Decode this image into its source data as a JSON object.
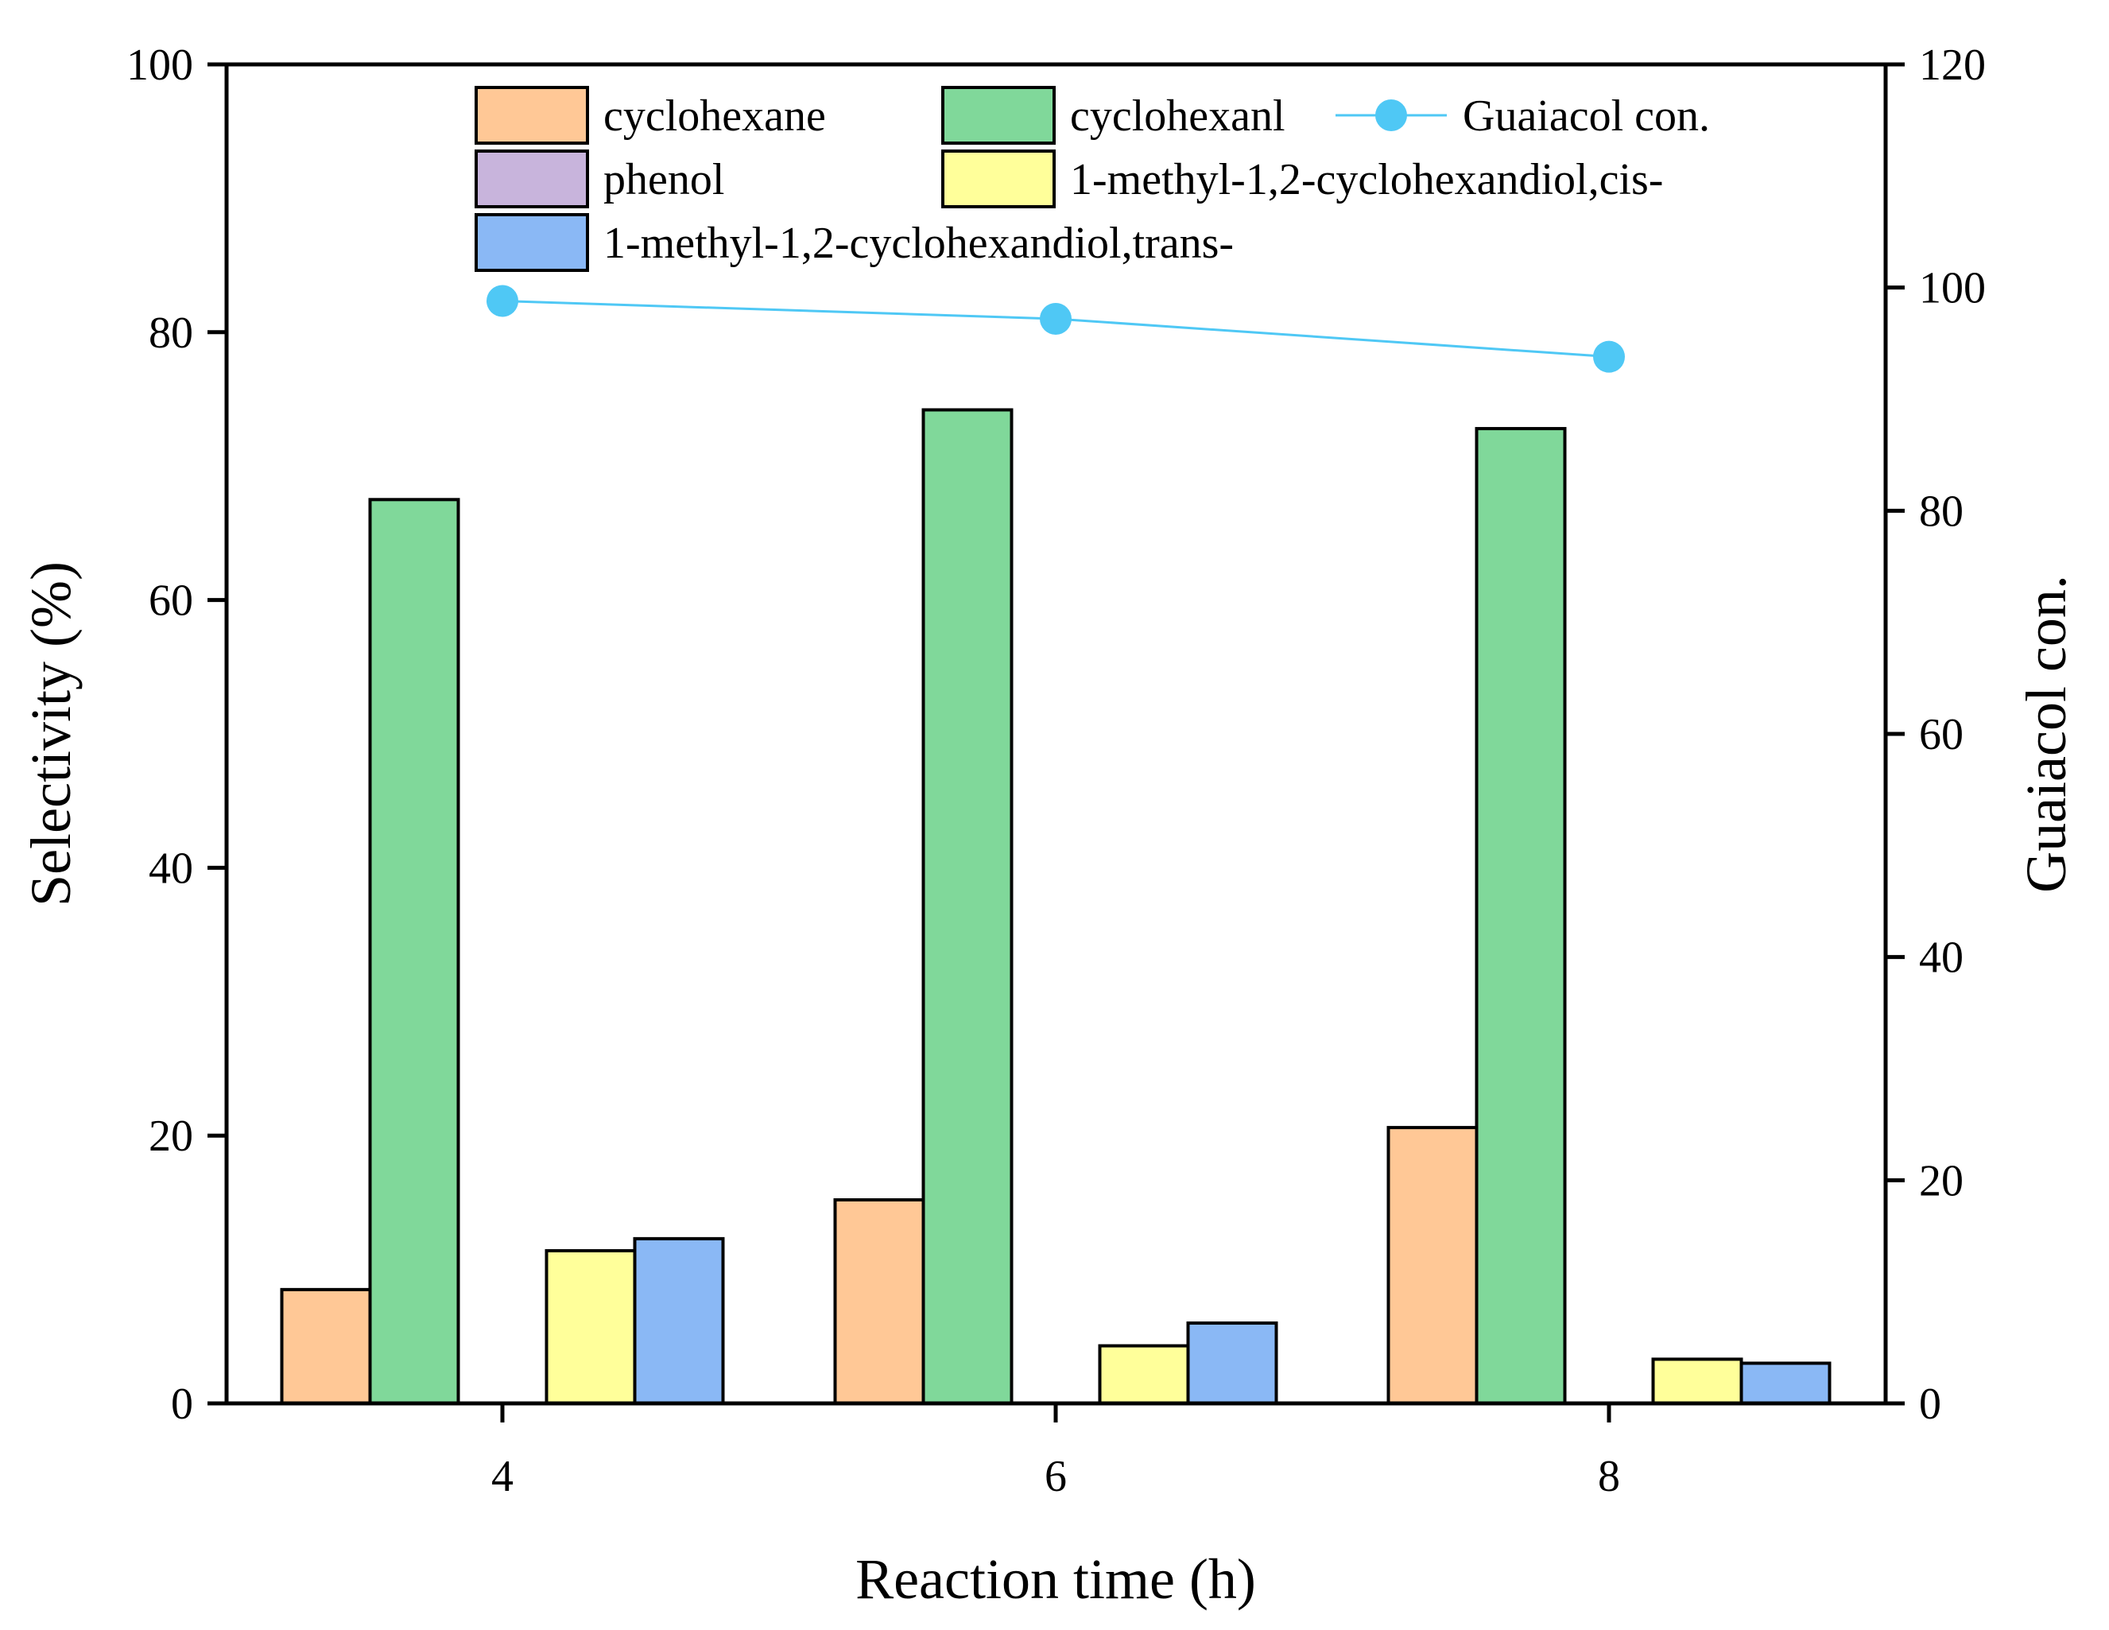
{
  "chart_data": {
    "type": "bar",
    "title": "",
    "xlabel": "Reaction time (h)",
    "ylabel": "Selectivity (%)",
    "y2label": "Guaiacol con.",
    "categories": [
      "4",
      "6",
      "8"
    ],
    "ylim": [
      0,
      100
    ],
    "y2lim": [
      0,
      120
    ],
    "yticks": [
      "0",
      "20",
      "40",
      "60",
      "80",
      "100"
    ],
    "y2ticks": [
      "0",
      "20",
      "40",
      "60",
      "80",
      "100",
      "120"
    ],
    "series": [
      {
        "name": "cyclohexane",
        "color": "#FFC896",
        "values": [
          8.5,
          15.2,
          20.6
        ]
      },
      {
        "name": "cyclohexanl",
        "color": "#80D89A",
        "values": [
          67.5,
          74.2,
          72.8
        ]
      },
      {
        "name": "phenol",
        "color": "#C8B4DC",
        "values": [
          0,
          0,
          0
        ]
      },
      {
        "name": "1-methyl-1,2-cyclohexandiol,cis-",
        "color": "#FFFF9A",
        "values": [
          11.4,
          4.3,
          3.3
        ]
      },
      {
        "name": "1-methyl-1,2-cyclohexandiol,trans-",
        "color": "#8AB8F5",
        "values": [
          12.3,
          6.0,
          3.0
        ]
      }
    ],
    "line_series": {
      "name": "Guaiacol con.",
      "color": "#4FC8F5",
      "axis": "right",
      "values": [
        98.8,
        97.2,
        93.8
      ]
    },
    "legend_position": "top"
  }
}
